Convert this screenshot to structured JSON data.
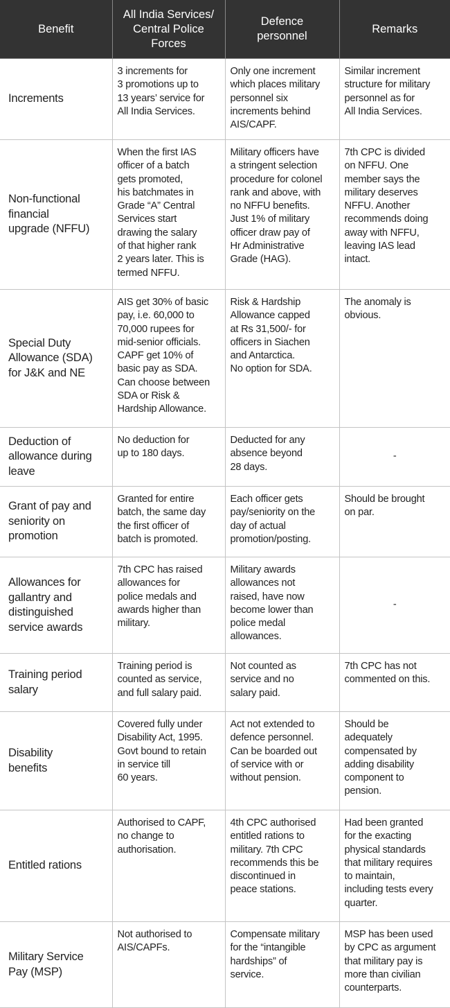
{
  "headers": [
    "Benefit",
    "All India Services/\nCentral Police\nForces",
    "Defence\npersonnel",
    "Remarks"
  ],
  "rows": [
    {
      "benefit": "Increments",
      "ais": "3 increments for\n3 promotions up to\n13 years’ service for\nAll India Services.",
      "defence": "Only one increment\nwhich places military\npersonnel six\nincrements behind\nAIS/CAPF.",
      "remarks": "Similar increment\nstructure for military\npersonnel as for\nAll India Services."
    },
    {
      "benefit": "Non-functional\nfinancial\nupgrade (NFFU)",
      "ais": "When the first IAS\nofficer of a batch\ngets promoted,\nhis batchmates in\nGrade “A” Central\nServices start\ndrawing the salary\nof that higher rank\n2 years later. This is\ntermed NFFU.",
      "defence": "Military officers have\na stringent selection\nprocedure for colonel\nrank and above, with\nno NFFU benefits.\nJust 1% of military\nofficer draw pay of\nHr Administrative\nGrade (HAG).",
      "remarks": "7th CPC is divided\non NFFU. One\nmember says the\nmilitary deserves\nNFFU. Another\nrecommends doing\naway with NFFU,\nleaving IAS lead\nintact."
    },
    {
      "benefit": "Special Duty\nAllowance (SDA)\nfor J&K and NE",
      "ais": "AIS get 30% of basic\npay, i.e. 60,000 to\n70,000 rupees for\nmid-senior officials.\nCAPF get 10% of\nbasic pay as SDA.\nCan choose between\nSDA or Risk &\nHardship Allowance.",
      "defence": "Risk & Hardship\nAllowance capped\nat Rs 31,500/- for\nofficers in Siachen\nand Antarctica.\nNo option for SDA.",
      "remarks": "The anomaly is\nobvious."
    },
    {
      "benefit": "Deduction of\nallowance during\nleave",
      "ais": "No deduction for\nup to 180 days.",
      "defence": "Deducted for any\nabsence beyond\n28 days.",
      "remarks": "-"
    },
    {
      "benefit": "Grant of pay and\nseniority on\npromotion",
      "ais": "Granted for entire\nbatch, the same day\nthe first officer of\nbatch is promoted.",
      "defence": "Each officer gets\npay/seniority on the\nday of actual\npromotion/posting.",
      "remarks": "Should be brought\non par."
    },
    {
      "benefit": "Allowances for\ngallantry and\ndistinguished\nservice awards",
      "ais": "7th CPC has raised\nallowances for\npolice medals and\nawards higher than\nmilitary.",
      "defence": "Military awards\nallowances not\nraised, have now\nbecome lower than\npolice medal\nallowances.",
      "remarks": "-"
    },
    {
      "benefit": "Training period\nsalary",
      "ais": "Training period is\ncounted as service,\nand full salary paid.",
      "defence": "Not counted as\nservice and no\nsalary paid.",
      "remarks": "7th CPC has not\ncommented on this."
    },
    {
      "benefit": "Disability\nbenefits",
      "ais": "Covered fully under\nDisability Act, 1995.\nGovt bound to retain\nin service till\n60 years.",
      "defence": "Act not extended to\ndefence personnel.\nCan be boarded out\nof service with or\nwithout pension.",
      "remarks": "Should be\nadequately\ncompensated by\nadding disability\ncomponent to\npension."
    },
    {
      "benefit": "Entitled rations",
      "ais": "Authorised to CAPF,\nno change to\nauthorisation.",
      "defence": "4th CPC authorised\nentitled rations to\nmilitary. 7th CPC\nrecommends this be\ndiscontinued in\npeace stations.",
      "remarks": "Had been granted\nfor the exacting\nphysical standards\nthat military requires\nto maintain,\nincluding tests every\nquarter."
    },
    {
      "benefit": "Military Service\nPay (MSP)",
      "ais": "Not authorised to\nAIS/CAPFs.",
      "defence": "Compensate military\nfor the “intangible\nhardships” of\nservice.",
      "remarks": "MSP has been used\nby CPC as argument\nthat military pay is\nmore than civilian\ncounterparts."
    }
  ]
}
